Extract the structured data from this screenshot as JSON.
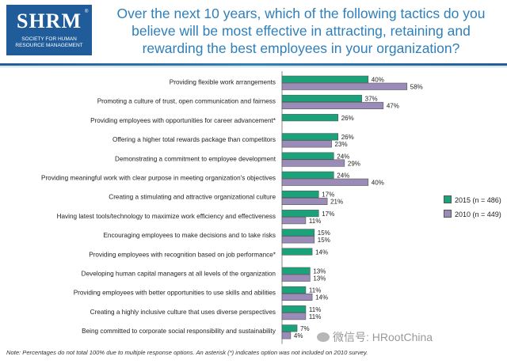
{
  "header": {
    "logo_text": "SHRM",
    "logo_reg": "®",
    "logo_sub_line1": "SOCIETY FOR HUMAN",
    "logo_sub_line2": "RESOURCE MANAGEMENT",
    "title": "Over the next 10 years, which of the following tactics do you believe will be most effective in attracting, retaining and rewarding the best employees in your organization?"
  },
  "chart_data": {
    "type": "bar",
    "orientation": "horizontal",
    "categories": [
      "Providing flexible work arrangements",
      "Promoting a culture of trust, open communication and fairness",
      "Providing employees with opportunities for career advancement*",
      "Offering a higher total rewards package than competitors",
      "Demonstrating a commitment to employee development",
      "Providing meaningful work with clear purpose in meeting organization's objectives",
      "Creating a stimulating and attractive organizational culture",
      "Having latest tools/technology to maximize work efficiency and effectiveness",
      "Encouraging employees to make decisions and to take risks",
      "Providing employees with recognition based on job performance*",
      "Developing human capital managers at all levels of the organization",
      "Providing employees with better opportunities to use skills and abilities",
      "Creating a highly inclusive culture that uses diverse perspectives",
      "Being committed to corporate social responsibility and sustainability"
    ],
    "series": [
      {
        "name": "2015 (n = 486)",
        "color": "#1aa37a",
        "values": [
          40,
          37,
          26,
          26,
          24,
          24,
          17,
          17,
          15,
          14,
          13,
          11,
          11,
          7
        ]
      },
      {
        "name": "2010 (n = 449)",
        "color": "#9b8bb8",
        "values": [
          58,
          47,
          null,
          23,
          29,
          40,
          21,
          11,
          15,
          null,
          13,
          14,
          11,
          4
        ]
      }
    ],
    "value_suffix": "%",
    "legend_position": "right",
    "grid": false
  },
  "note": "Note: Percentages do not total 100% due to multiple response options. An asterisk (*) indicates option was not included on 2010 survey.",
  "watermark": "微信号: HRootChina"
}
